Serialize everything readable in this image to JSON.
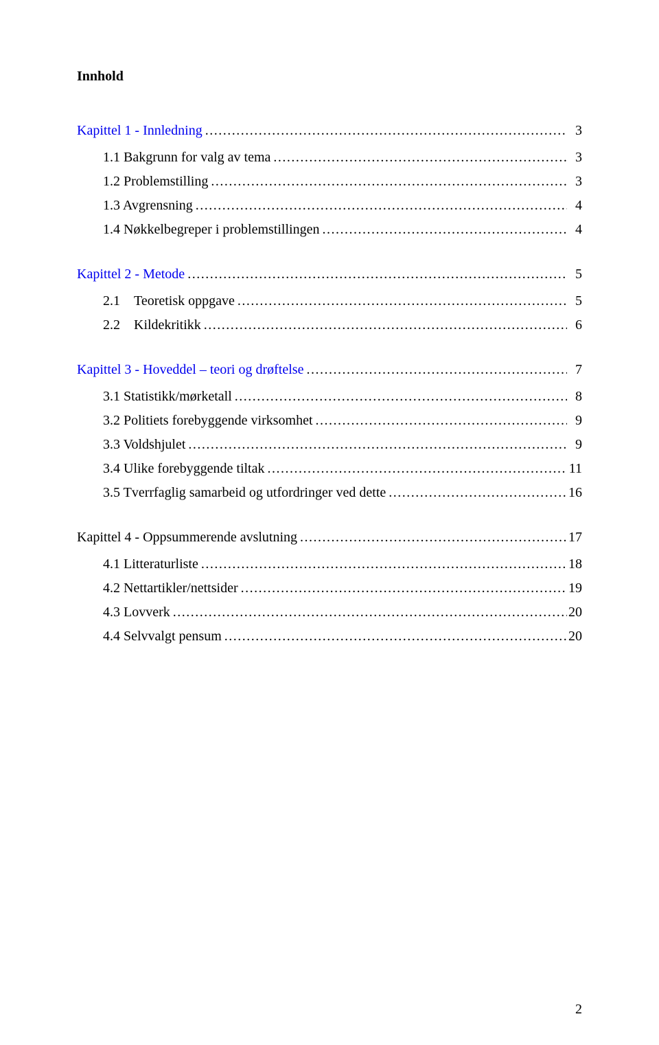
{
  "title": "Innhold",
  "page_number": "2",
  "colors": {
    "text": "#000000",
    "link": "#0000ee",
    "background": "#ffffff"
  },
  "typography": {
    "family": "Times New Roman",
    "title_size_pt": 15,
    "body_size_pt": 15
  },
  "sections": [
    {
      "heading": "Kapittel 1 - Innledning",
      "heading_page": "3",
      "linked": true,
      "items": [
        {
          "label": "1.1 Bakgrunn for valg av tema",
          "page": "3"
        },
        {
          "label": "1.2 Problemstilling",
          "page": "3"
        },
        {
          "label": "1.3 Avgrensning",
          "page": "4"
        },
        {
          "label": "1.4 Nøkkelbegreper i problemstillingen",
          "page": "4"
        }
      ]
    },
    {
      "heading": "Kapittel 2 - Metode",
      "heading_page": "5",
      "linked": true,
      "items": [
        {
          "label": "2.1 Teoretisk oppgave",
          "page": "5"
        },
        {
          "label": "2.2 Kildekritikk",
          "page": "6"
        }
      ]
    },
    {
      "heading": "Kapittel 3 - Hoveddel – teori og drøftelse",
      "heading_page": "7",
      "linked": true,
      "items": [
        {
          "label": "3.1 Statistikk/mørketall",
          "page": "8"
        },
        {
          "label": "3.2 Politiets forebyggende virksomhet",
          "page": "9"
        },
        {
          "label": "3.3 Voldshjulet",
          "page": "9"
        },
        {
          "label": "3.4 Ulike forebyggende tiltak",
          "page": "11"
        },
        {
          "label": "3.5 Tverrfaglig samarbeid og utfordringer ved dette",
          "page": "16"
        }
      ]
    },
    {
      "heading": "Kapittel 4 - Oppsummerende avslutning",
      "heading_page": "17",
      "linked": false,
      "items": [
        {
          "label": "4.1 Litteraturliste",
          "page": "18"
        },
        {
          "label": "4.2 Nettartikler/nettsider",
          "page": "19"
        },
        {
          "label": "4.3 Lovverk",
          "page": "20"
        },
        {
          "label": "4.4 Selvvalgt pensum",
          "page": "20"
        }
      ]
    }
  ]
}
